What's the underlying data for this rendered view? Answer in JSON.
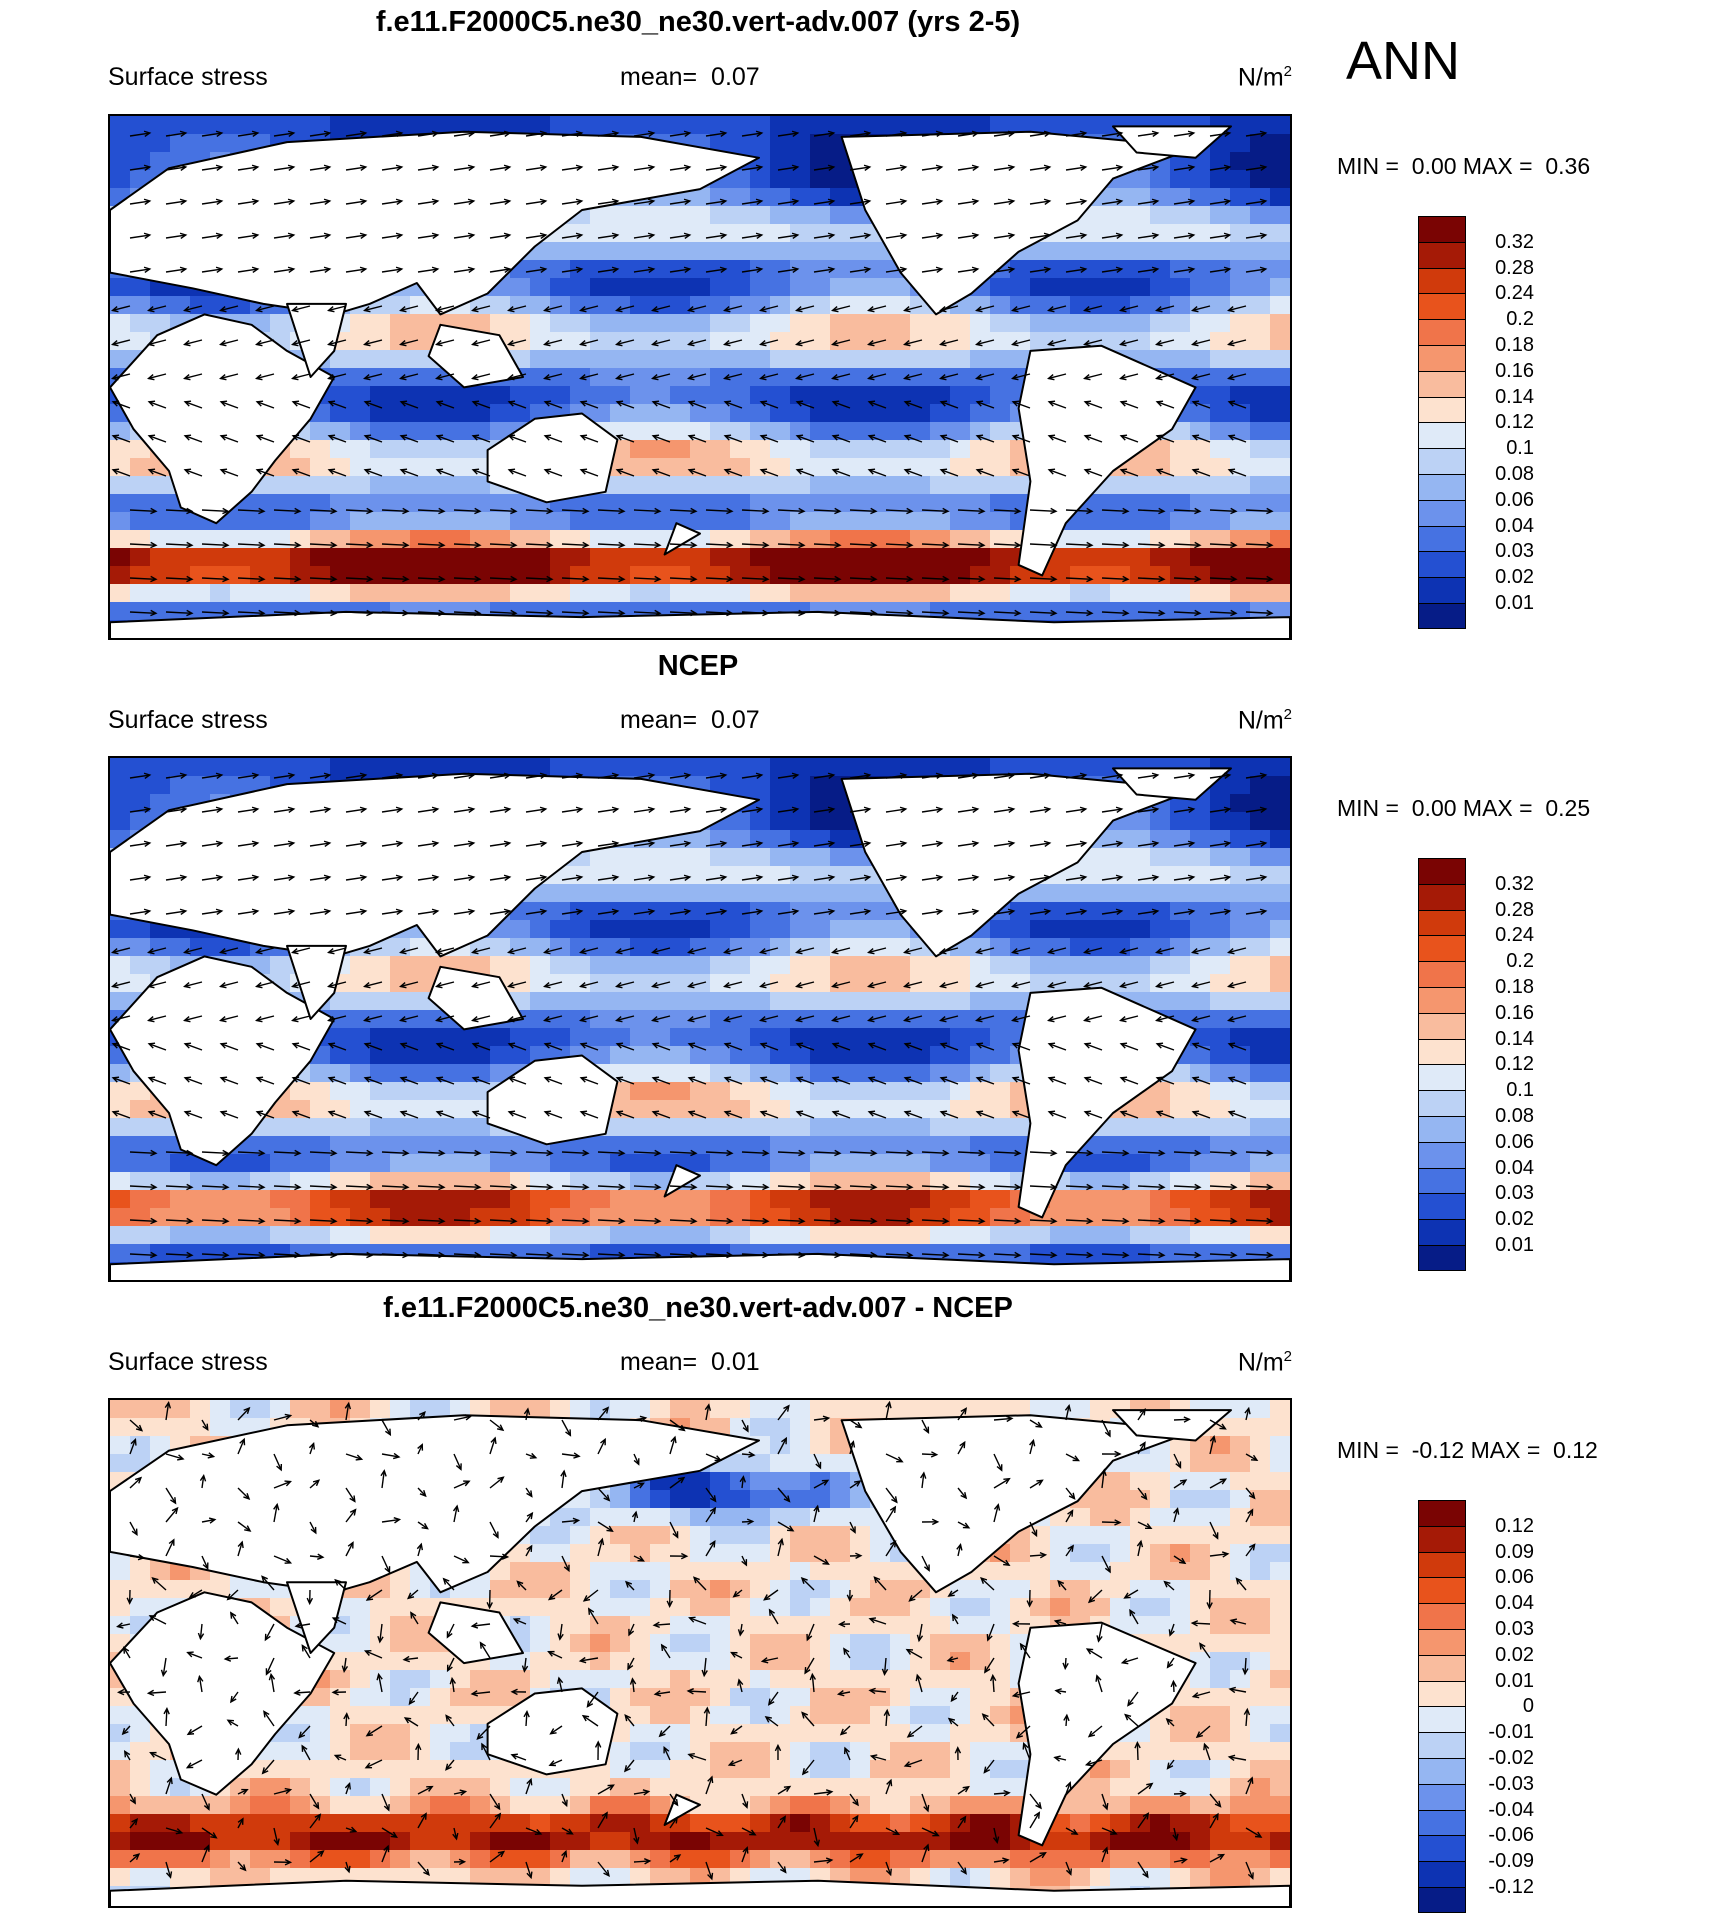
{
  "season": "ANN",
  "land_color": "#ffffff",
  "panels": [
    {
      "title": "f.e11.F2000C5.ne30_ne30.vert-adv.007 (yrs 2-5)",
      "left_label": "Surface stress",
      "mean_label": "mean=",
      "mean_value": "0.07",
      "units": "N/m",
      "units_exp": "2",
      "min_label": "MIN =",
      "min_value": "0.00",
      "max_label": "MAX =",
      "max_value": "0.36",
      "levels": [
        "0.32",
        "0.28",
        "0.24",
        "0.2",
        "0.18",
        "0.16",
        "0.14",
        "0.12",
        "0.1",
        "0.08",
        "0.06",
        "0.04",
        "0.03",
        "0.02",
        "0.01"
      ],
      "colors": [
        "#7a0403",
        "#a51a06",
        "#d03a0c",
        "#e8531c",
        "#f0744a",
        "#f5966e",
        "#f9bc9e",
        "#fde2cf",
        "#dfeaf8",
        "#bcd2f5",
        "#95b6f2",
        "#6c92ec",
        "#4672e2",
        "#2450d2",
        "#0d33b3",
        "#061c87"
      ]
    },
    {
      "title": "NCEP",
      "left_label": "Surface stress",
      "mean_label": "mean=",
      "mean_value": "0.07",
      "units": "N/m",
      "units_exp": "2",
      "min_label": "MIN =",
      "min_value": "0.00",
      "max_label": "MAX =",
      "max_value": "0.25",
      "levels": [
        "0.32",
        "0.28",
        "0.24",
        "0.2",
        "0.18",
        "0.16",
        "0.14",
        "0.12",
        "0.1",
        "0.08",
        "0.06",
        "0.04",
        "0.03",
        "0.02",
        "0.01"
      ],
      "colors": [
        "#7a0403",
        "#a51a06",
        "#d03a0c",
        "#e8531c",
        "#f0744a",
        "#f5966e",
        "#f9bc9e",
        "#fde2cf",
        "#dfeaf8",
        "#bcd2f5",
        "#95b6f2",
        "#6c92ec",
        "#4672e2",
        "#2450d2",
        "#0d33b3",
        "#061c87"
      ]
    },
    {
      "title": "f.e11.F2000C5.ne30_ne30.vert-adv.007 - NCEP",
      "left_label": "Surface stress",
      "mean_label": "mean=",
      "mean_value": "0.01",
      "units": "N/m",
      "units_exp": "2",
      "min_label": "MIN =",
      "min_value": "-0.12",
      "max_label": "MAX =",
      "max_value": "0.12",
      "levels": [
        "0.12",
        "0.09",
        "0.06",
        "0.04",
        "0.03",
        "0.02",
        "0.01",
        "0",
        "-0.01",
        "-0.02",
        "-0.03",
        "-0.04",
        "-0.06",
        "-0.09",
        "-0.12"
      ],
      "colors": [
        "#7a0403",
        "#a51a06",
        "#d03a0c",
        "#e8531c",
        "#f0744a",
        "#f5966e",
        "#f9bc9e",
        "#fde2cf",
        "#dfeaf8",
        "#bcd2f5",
        "#95b6f2",
        "#6c92ec",
        "#4672e2",
        "#2450d2",
        "#0d33b3",
        "#061c87"
      ]
    }
  ]
}
